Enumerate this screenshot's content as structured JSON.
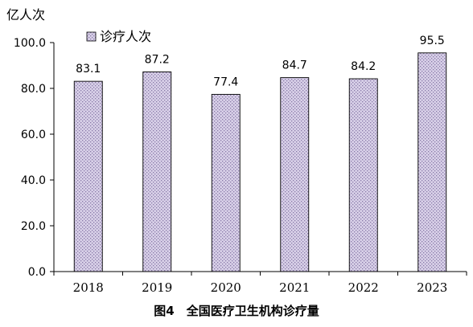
{
  "chart_data": {
    "type": "bar",
    "categories": [
      "2018",
      "2019",
      "2020",
      "2021",
      "2022",
      "2023"
    ],
    "series": [
      {
        "name": "诊疗人次",
        "values": [
          83.1,
          87.2,
          77.4,
          84.7,
          84.2,
          95.5
        ]
      }
    ],
    "data_labels": [
      "83.1",
      "87.2",
      "77.4",
      "84.7",
      "84.2",
      "95.5"
    ],
    "ylabel": "亿人次",
    "yticks": [
      "0.0",
      "20.0",
      "40.0",
      "60.0",
      "80.0",
      "100.0"
    ],
    "ylim": [
      0,
      100
    ],
    "grid": false,
    "legend": "top-left",
    "caption": "图4　全国医疗卫生机构诊疗量",
    "colors": {
      "bar_fill": "#d8d0e8",
      "bar_pattern": "#8878a8",
      "bar_stroke": "#000000",
      "axis": "#000000"
    }
  }
}
